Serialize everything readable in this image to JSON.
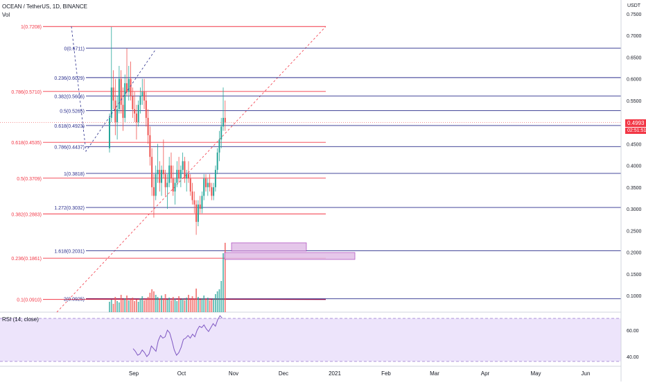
{
  "header": {
    "symbol": "OCEAN / TetherUS, 1D, BINANCE",
    "volume_label": "Vol",
    "currency": "USDT",
    "rsi_label": "RSI (14, close)"
  },
  "price_scale": {
    "ticks": [
      "0.7500",
      "0.7000",
      "0.6500",
      "0.6000",
      "0.5500",
      "0.4500",
      "0.4000",
      "0.3500",
      "0.3000",
      "0.2500",
      "0.2000",
      "0.1500",
      "0.1000"
    ],
    "current_price": "0.4993",
    "countdown": "02:51:51",
    "current_color": "#f23645"
  },
  "rsi_scale": {
    "ticks": [
      "60.00",
      "40.00"
    ]
  },
  "time_axis": {
    "ticks": [
      "Sep",
      "Oct",
      "Nov",
      "Dec",
      "2021",
      "Feb",
      "Mar",
      "Apr",
      "May",
      "Jun"
    ]
  },
  "fib_retracement_red": {
    "color": "#f23645",
    "levels": [
      {
        "label": "1(0.7208)",
        "price": 0.7208
      },
      {
        "label": "0.786(0.5710)",
        "price": 0.571
      },
      {
        "label": "0.618(0.4535)",
        "price": 0.4535
      },
      {
        "label": "0.5(0.3709)",
        "price": 0.3709
      },
      {
        "label": "0.382(0.2883)",
        "price": 0.2883
      },
      {
        "label": "0.236(0.1861)",
        "price": 0.1861
      },
      {
        "label": "0.1(0.0910)",
        "price": 0.091
      }
    ]
  },
  "fib_extension_blue": {
    "color": "#2a2e8c",
    "levels": [
      {
        "label": "0(0.6711)",
        "price": 0.6711
      },
      {
        "label": "0.236(0.6029)",
        "price": 0.6029
      },
      {
        "label": "0.382(0.5606)",
        "price": 0.5606
      },
      {
        "label": "0.5(0.5265)",
        "price": 0.5265
      },
      {
        "label": "0.618(0.4923)",
        "price": 0.4923
      },
      {
        "label": "0.786(0.4437)",
        "price": 0.4437
      },
      {
        "label": "1(0.3818)",
        "price": 0.3818
      },
      {
        "label": "1.272(0.3032)",
        "price": 0.3032
      },
      {
        "label": "1.618(0.2031)",
        "price": 0.2031
      },
      {
        "label": "2(0.0925)",
        "price": 0.0925
      }
    ]
  },
  "colors": {
    "up": "#26a69a",
    "down": "#ef5350",
    "rsi_line": "#7e57c2",
    "rsi_band": "#ede4fb",
    "zone_fill": "#e1bee7",
    "zone_border": "#9c27b0"
  },
  "candles": [
    [
      0.44,
      0.52,
      0.43,
      0.51
    ],
    [
      0.51,
      0.72,
      0.5,
      0.58
    ],
    [
      0.58,
      0.62,
      0.53,
      0.55
    ],
    [
      0.55,
      0.6,
      0.47,
      0.5
    ],
    [
      0.5,
      0.56,
      0.46,
      0.53
    ],
    [
      0.53,
      0.63,
      0.52,
      0.6
    ],
    [
      0.6,
      0.62,
      0.52,
      0.54
    ],
    [
      0.54,
      0.58,
      0.48,
      0.51
    ],
    [
      0.51,
      0.61,
      0.5,
      0.59
    ],
    [
      0.59,
      0.67,
      0.56,
      0.57
    ],
    [
      0.57,
      0.63,
      0.55,
      0.6
    ],
    [
      0.6,
      0.64,
      0.55,
      0.56
    ],
    [
      0.56,
      0.58,
      0.51,
      0.53
    ],
    [
      0.53,
      0.57,
      0.5,
      0.52
    ],
    [
      0.52,
      0.54,
      0.46,
      0.5
    ],
    [
      0.5,
      0.55,
      0.49,
      0.54
    ],
    [
      0.54,
      0.58,
      0.52,
      0.56
    ],
    [
      0.56,
      0.6,
      0.54,
      0.57
    ],
    [
      0.57,
      0.6,
      0.53,
      0.55
    ],
    [
      0.55,
      0.57,
      0.49,
      0.51
    ],
    [
      0.51,
      0.53,
      0.45,
      0.47
    ],
    [
      0.47,
      0.49,
      0.4,
      0.42
    ],
    [
      0.42,
      0.44,
      0.33,
      0.35
    ],
    [
      0.35,
      0.38,
      0.28,
      0.33
    ],
    [
      0.33,
      0.4,
      0.32,
      0.38
    ],
    [
      0.38,
      0.45,
      0.36,
      0.39
    ],
    [
      0.39,
      0.41,
      0.34,
      0.36
    ],
    [
      0.36,
      0.4,
      0.33,
      0.39
    ],
    [
      0.39,
      0.46,
      0.37,
      0.38
    ],
    [
      0.38,
      0.39,
      0.33,
      0.35
    ],
    [
      0.35,
      0.38,
      0.3,
      0.36
    ],
    [
      0.36,
      0.42,
      0.35,
      0.4
    ],
    [
      0.4,
      0.43,
      0.36,
      0.37
    ],
    [
      0.37,
      0.4,
      0.33,
      0.34
    ],
    [
      0.34,
      0.37,
      0.31,
      0.36
    ],
    [
      0.36,
      0.41,
      0.35,
      0.39
    ],
    [
      0.39,
      0.42,
      0.36,
      0.37
    ],
    [
      0.37,
      0.4,
      0.35,
      0.39
    ],
    [
      0.39,
      0.43,
      0.38,
      0.41
    ],
    [
      0.41,
      0.42,
      0.36,
      0.37
    ],
    [
      0.37,
      0.39,
      0.34,
      0.38
    ],
    [
      0.38,
      0.41,
      0.36,
      0.37
    ],
    [
      0.37,
      0.38,
      0.33,
      0.34
    ],
    [
      0.34,
      0.36,
      0.31,
      0.32
    ],
    [
      0.32,
      0.34,
      0.29,
      0.31
    ],
    [
      0.31,
      0.32,
      0.24,
      0.27
    ],
    [
      0.27,
      0.32,
      0.26,
      0.31
    ],
    [
      0.31,
      0.33,
      0.29,
      0.3
    ],
    [
      0.3,
      0.34,
      0.29,
      0.33
    ],
    [
      0.33,
      0.38,
      0.32,
      0.37
    ],
    [
      0.37,
      0.38,
      0.34,
      0.35
    ],
    [
      0.35,
      0.37,
      0.33,
      0.36
    ],
    [
      0.36,
      0.38,
      0.34,
      0.35
    ],
    [
      0.35,
      0.36,
      0.32,
      0.33
    ],
    [
      0.33,
      0.36,
      0.32,
      0.35
    ],
    [
      0.35,
      0.4,
      0.34,
      0.39
    ],
    [
      0.39,
      0.44,
      0.38,
      0.43
    ],
    [
      0.43,
      0.48,
      0.41,
      0.46
    ],
    [
      0.46,
      0.51,
      0.44,
      0.49
    ],
    [
      0.49,
      0.58,
      0.48,
      0.51
    ],
    [
      0.51,
      0.55,
      0.48,
      0.4993
    ]
  ],
  "volumes": [
    0.15,
    0.18,
    0.12,
    0.22,
    0.16,
    0.14,
    0.25,
    0.18,
    0.2,
    0.24,
    0.17,
    0.19,
    0.21,
    0.16,
    0.18,
    0.15,
    0.2,
    0.23,
    0.17,
    0.19,
    0.22,
    0.28,
    0.33,
    0.3,
    0.25,
    0.22,
    0.2,
    0.24,
    0.19,
    0.26,
    0.18,
    0.21,
    0.17,
    0.22,
    0.19,
    0.16,
    0.23,
    0.18,
    0.2,
    0.17,
    0.21,
    0.25,
    0.19,
    0.23,
    0.2,
    0.34,
    0.22,
    0.18,
    0.2,
    0.24,
    0.19,
    0.21,
    0.17,
    0.18,
    0.2,
    0.26,
    0.3,
    0.33,
    0.45,
    0.85,
    1.0
  ],
  "rsi": [
    46,
    44,
    41,
    42,
    45,
    43,
    40,
    42,
    48,
    46,
    44,
    52,
    56,
    54,
    55,
    60,
    58,
    52,
    45,
    41,
    43,
    47,
    53,
    54,
    56,
    54,
    57,
    55,
    60,
    63,
    62,
    64,
    61,
    59,
    62,
    65,
    63,
    68,
    71,
    69
  ]
}
